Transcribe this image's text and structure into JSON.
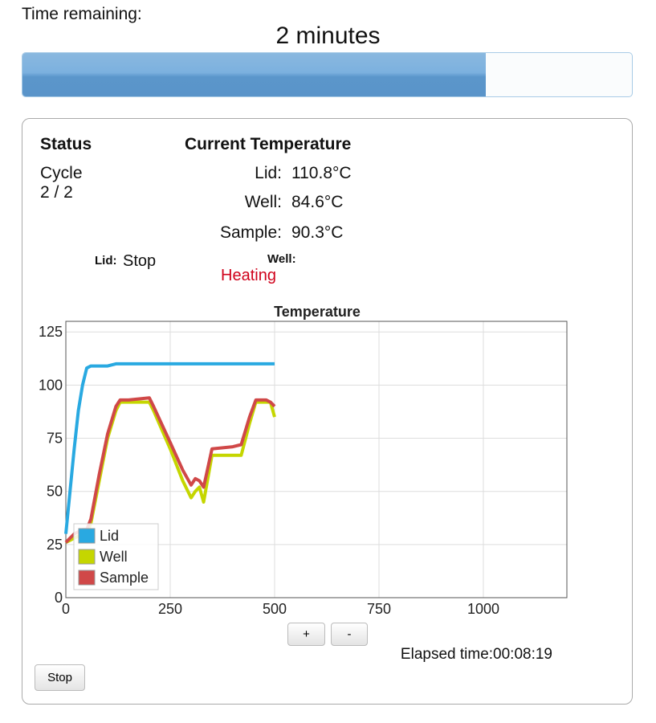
{
  "header": {
    "label": "Time remaining:",
    "value": "2 minutes",
    "progress_percent": 76
  },
  "status": {
    "title": "Status",
    "cycle_label": "Cycle",
    "cycle_value": "2 / 2"
  },
  "current_temperature": {
    "title": "Current Temperature",
    "readings": [
      {
        "label": "Lid:",
        "value": "110.8°C"
      },
      {
        "label": "Well:",
        "value": "84.6°C"
      },
      {
        "label": "Sample:",
        "value": "90.3°C"
      }
    ]
  },
  "lid_state": {
    "label": "Lid:",
    "value": "Stop"
  },
  "well_state": {
    "label": "Well:",
    "value": "Heating"
  },
  "chart_data": {
    "type": "line",
    "title": "Temperature",
    "x": [
      0,
      10,
      20,
      30,
      40,
      50,
      60,
      80,
      100,
      120,
      130,
      150,
      200,
      210,
      250,
      280,
      300,
      310,
      320,
      330,
      350,
      400,
      420,
      440,
      455,
      480,
      490,
      500
    ],
    "series": [
      {
        "name": "Lid",
        "color": "#29a9e1",
        "values": [
          30,
          50,
          70,
          88,
          100,
          108,
          109,
          109,
          109,
          110,
          110,
          110,
          110,
          110,
          110,
          110,
          110,
          110,
          110,
          110,
          110,
          110,
          110,
          110,
          110,
          110,
          110,
          110
        ]
      },
      {
        "name": "Well",
        "color": "#c5d600",
        "values": [
          26,
          27,
          28,
          29,
          29,
          30,
          35,
          55,
          75,
          88,
          92,
          92,
          92,
          88,
          70,
          55,
          47,
          50,
          52,
          45,
          67,
          67,
          67,
          82,
          92,
          92,
          92,
          85
        ]
      },
      {
        "name": "Sample",
        "color": "#d04848",
        "values": [
          26,
          28,
          30,
          31,
          32,
          32,
          37,
          58,
          77,
          90,
          93,
          93,
          94,
          90,
          73,
          60,
          53,
          56,
          55,
          52,
          70,
          71,
          72,
          85,
          93,
          93,
          92,
          90
        ]
      }
    ],
    "xlim": [
      0,
      1200
    ],
    "xticks": [
      0,
      250,
      500,
      750,
      1000
    ],
    "ylim": [
      0,
      130
    ],
    "yticks": [
      0,
      25,
      50,
      75,
      100,
      125
    ],
    "grid": true,
    "legend": "lower left"
  },
  "controls": {
    "zoom_in": "+",
    "zoom_out": "-",
    "elapsed": "Elapsed time:00:08:19",
    "stop": "Stop"
  }
}
